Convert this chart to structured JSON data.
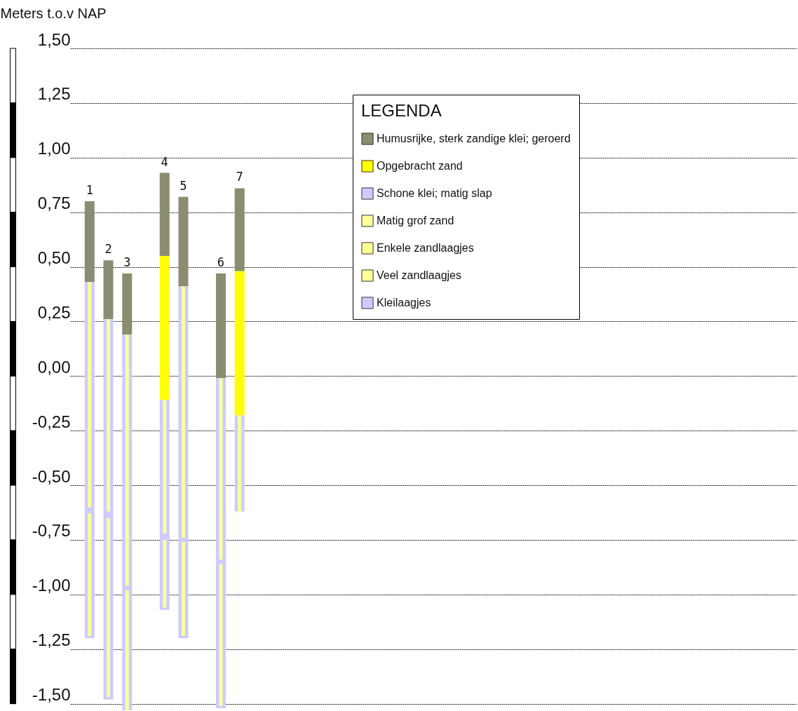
{
  "chart_data": {
    "type": "bar",
    "ylabel": "Meters t.o.v NAP",
    "legend_title": "LEGENDA",
    "legend": "top",
    "grid": "y",
    "categories": [
      "1",
      "2",
      "3",
      null,
      "4",
      "5",
      null,
      "6",
      "7"
    ],
    "series": [
      {
        "name": "Humusrijke, sterk zandige klei; geroerd",
        "color": "#8c8c70",
        "base": [
          0.43,
          0.26,
          0.19,
          null,
          0.55,
          0.41,
          null,
          -0.01,
          0.48
        ],
        "values": [
          0.37,
          0.27,
          0.28,
          null,
          0.38,
          0.41,
          null,
          0.48,
          0.38
        ]
      },
      {
        "name": "Opgebracht zand",
        "color": "#ffff00",
        "base": [
          null,
          null,
          null,
          null,
          -0.11,
          null,
          null,
          null,
          -0.18
        ],
        "values": [
          null,
          null,
          null,
          null,
          0.66,
          null,
          null,
          null,
          0.66
        ]
      },
      {
        "name": "Schone klei; matig slap",
        "color": "#ccccff",
        "base": [
          -1.2,
          -1.48,
          -1.53,
          null,
          -1.07,
          -1.2,
          null,
          -1.52,
          -0.62
        ],
        "values": [
          1.63,
          1.74,
          1.72,
          null,
          0.96,
          1.61,
          null,
          1.51,
          0.44
        ]
      },
      {
        "name": "Matig grof zand",
        "color": "#ffff99",
        "values": [
          null,
          null,
          null,
          null,
          null,
          null,
          null,
          null,
          null
        ]
      },
      {
        "name": "Enkele zandlaagjes",
        "color": "#ffff99",
        "base": [
          -0.6,
          -0.62,
          -0.96,
          null,
          -0.72,
          -0.74,
          null,
          -0.84,
          -0.62
        ],
        "values": [
          1.03,
          0.88,
          1.15,
          null,
          0.61,
          1.15,
          null,
          0.83,
          0.44
        ]
      },
      {
        "name": "Veel zandlaagjes",
        "color": "#ffff99",
        "base": [
          -1.19,
          -1.47,
          -1.53,
          null,
          -1.06,
          -1.19,
          null,
          -1.51,
          null
        ],
        "values": [
          0.56,
          0.82,
          0.55,
          null,
          0.31,
          0.43,
          null,
          0.65,
          null
        ]
      },
      {
        "name": "Kleilaagjes",
        "color": "#ccccff",
        "values": [
          null,
          null,
          null,
          null,
          null,
          null,
          null,
          null,
          null
        ]
      }
    ],
    "ylim": [
      -1.53,
      1.5
    ],
    "yticks": [
      {
        "value": 1.5,
        "label": "1,50"
      },
      {
        "value": 1.25,
        "label": "1,25"
      },
      {
        "value": 1,
        "label": "1,00"
      },
      {
        "value": 0.75,
        "label": "0,75"
      },
      {
        "value": 0.5,
        "label": "0,50"
      },
      {
        "value": 0.25,
        "label": "0,25"
      },
      {
        "value": 0,
        "label": "0,00"
      },
      {
        "value": -0.25,
        "label": "-0,25"
      },
      {
        "value": -0.5,
        "label": "-0,50"
      },
      {
        "value": -0.75,
        "label": "-0,75"
      },
      {
        "value": -1,
        "label": "-1,00"
      },
      {
        "value": -1.25,
        "label": "-1,25"
      },
      {
        "value": -1.5,
        "label": "-1,50"
      }
    ]
  }
}
